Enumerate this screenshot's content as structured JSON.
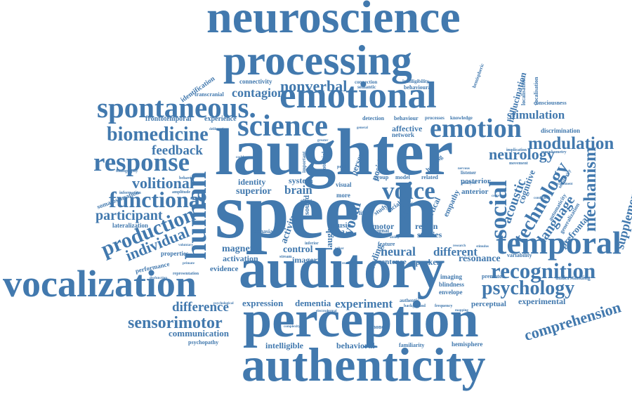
{
  "style": {
    "word_color": "#4279ae",
    "background": "#ffffff"
  },
  "words": {
    "neuroscience": "neuroscience",
    "processing": "processing",
    "emotional": "emotional",
    "spontaneous": "spontaneous.",
    "science": "science",
    "laughter": "laughter",
    "speech": "speech",
    "auditory": "auditory",
    "perception": "perception",
    "authenticity": "authenticity",
    "vocalization": "vocalization",
    "temporal": "temporal",
    "human": "human",
    "emotion": "emotion",
    "response": "response",
    "biomedicine": "biomedicine",
    "functional": "functional",
    "production": "production",
    "recognition": "recognition",
    "psychology": "psychology",
    "social": "social",
    "technology": "technology",
    "voice": "voice",
    "nonverbal": "nonverbal",
    "contagion": "contagion",
    "feedback": "feedback",
    "volitional": "volitional",
    "participant": "participant",
    "individual": "individual",
    "modulation": "modulation",
    "stimulation": "stimulation",
    "mechanism": "mechanism",
    "neurology": "neurology",
    "acoustic": "acoustic",
    "language": "language",
    "sensorimotor": "sensorimotor",
    "difference": "difference",
    "comprehension": "comprehension",
    "supplementary": "supplementary",
    "experiment": "experiment",
    "expression": "expression",
    "dementia": "dementia",
    "magnetic": "magnetic",
    "activation": "activation",
    "control": "control",
    "neural": "neural",
    "different": "different",
    "resonance": "resonance",
    "communication": "communication",
    "intelligible": "intelligible",
    "behavioral": "behavioral",
    "superior": "superior",
    "brain": "brain",
    "identity": "identity",
    "system": "system",
    "vocal": "vocal",
    "motor": "motor",
    "music": "music",
    "area": "area",
    "imagery": "imagery",
    "sentence": "sentence",
    "speaker": "speaker",
    "experimental": "experimental",
    "perceptual": "perceptual",
    "psychopathy": "psychopathy",
    "hemisphere": "hemisphere",
    "familiarity": "familiarity",
    "connectivity": "connectivity",
    "transcranial": "transcranial",
    "frontotemporal": "frontotemporal",
    "identification": "identification",
    "experience": "experience",
    "affective": "affective",
    "network": "network",
    "detection": "detection",
    "behaviour": "behaviour",
    "hallucination": "hallucination",
    "consciousness": "consciousness",
    "discrimination": "discrimination",
    "cognitive": "cognitive",
    "posterior": "posterior",
    "anterior": "anterior",
    "prefrontal": "prefrontal",
    "somatosensation": "somatosensation",
    "lateralization": "lateralization",
    "performance": "performance",
    "properties": "properties",
    "evidence": "evidence",
    "imaging": "imaging",
    "blindness": "blindness",
    "envelope": "envelope",
    "premotor": "premotor",
    "understanding": "understanding",
    "variability": "variability",
    "tomography": "tomography",
    "information": "information",
    "behavior": "behavior",
    "amplitude": "amplitude",
    "aphasia": "aphasia",
    "visual": "visual",
    "region": "region",
    "studies": "studies",
    "feature": "feature",
    "signal": "signal",
    "more": "more",
    "phonetic": "phonetic",
    "authentic": "authentic",
    "intelligibility": "intelligibility",
    "behavioural": "behavioural",
    "semantic": "semantic",
    "connection": "connection",
    "processes": "processes",
    "knowledge": "knowledge",
    "localisation": "localisation",
    "vocalisation": "vocalisation",
    "analysis": "analysis",
    "automaticity": "automaticity",
    "generalization": "generalization",
    "sensitivity": "sensitivity",
    "movement": "movement",
    "morphometry": "morphometry",
    "group": "group",
    "model": "model",
    "related": "related",
    "listener": "listener",
    "noise": "noise",
    "sound": "sound",
    "study": "study",
    "facial": "facial",
    "effect": "effect",
    "hearing": "hearing",
    "positive": "positive",
    "person": "person",
    "cortical": "cortical",
    "empathy": "empathy",
    "laugh": "laugh",
    "finding": "finding",
    "activity": "activity",
    "inferior": "inferior",
    "stream": "stream",
    "research": "research",
    "stimulus": "stimulus",
    "frequency": "frequency",
    "background": "background",
    "complexity": "complexity",
    "electrodermal": "electrodermal",
    "representation": "representation",
    "psychological": "psychological",
    "hemispheric": "hemispheric",
    "general": "general",
    "greater": "greater",
    "important": "important",
    "potential": "potential",
    "profile": "profile",
    "female": "female",
    "talker": "talker",
    "reading": "reading",
    "cochlear": "cochlear",
    "deliberation": "deliberation",
    "implication": "implication",
    "condition": "condition",
    "primate": "primate",
    "ability": "ability",
    "mapping": "mapping",
    "voluntary": "voluntary",
    "cortex": "cortex",
    "nervous": "nervous",
    "recruitment": "recruitment",
    "life": "life",
    "implicit": "implicit",
    "behavioural2": "dysfunction"
  }
}
